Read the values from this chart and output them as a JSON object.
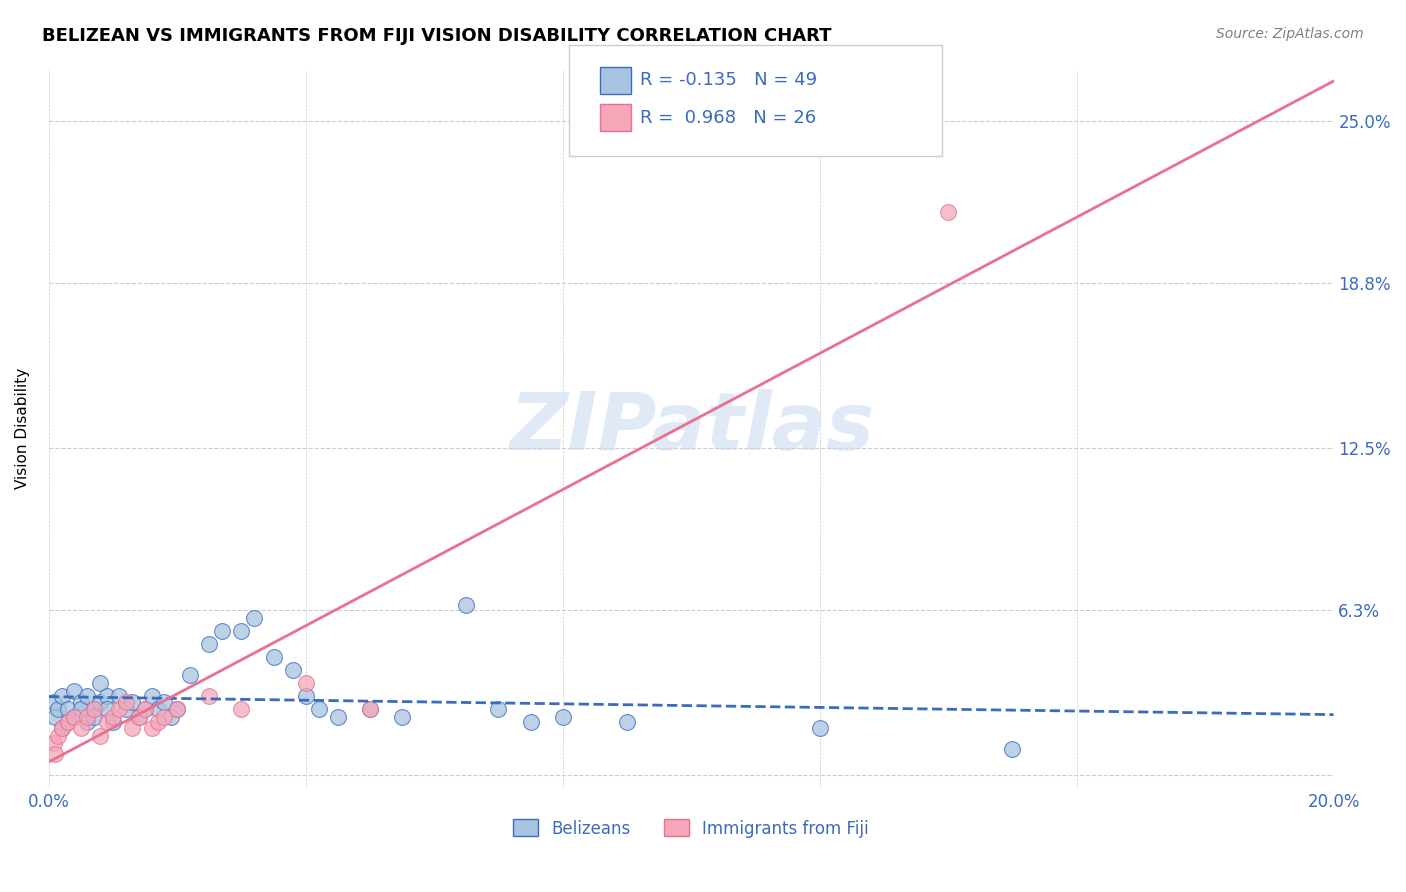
{
  "title": "BELIZEAN VS IMMIGRANTS FROM FIJI VISION DISABILITY CORRELATION CHART",
  "source": "Source: ZipAtlas.com",
  "ylabel": "Vision Disability",
  "watermark": "ZIPatlas",
  "xlim": [
    0.0,
    0.2
  ],
  "ylim": [
    -0.005,
    0.27
  ],
  "xticks": [
    0.0,
    0.04,
    0.08,
    0.12,
    0.16,
    0.2
  ],
  "xtick_labels": [
    "0.0%",
    "",
    "",
    "",
    "",
    "20.0%"
  ],
  "yticks": [
    0.0,
    0.063,
    0.125,
    0.188,
    0.25
  ],
  "ytick_labels": [
    "",
    "6.3%",
    "12.5%",
    "18.8%",
    "25.0%"
  ],
  "belizean_R": -0.135,
  "belizean_N": 49,
  "fiji_R": 0.968,
  "fiji_N": 26,
  "belizean_color": "#a8c4e0",
  "fiji_color": "#f4a7b9",
  "belizean_line_color": "#3a6bbf",
  "fiji_line_color": "#e87090",
  "legend_color": "#3a6bbf",
  "belizean_x": [
    0.0008,
    0.001,
    0.0015,
    0.002,
    0.002,
    0.003,
    0.003,
    0.004,
    0.004,
    0.005,
    0.005,
    0.006,
    0.006,
    0.007,
    0.007,
    0.008,
    0.008,
    0.009,
    0.009,
    0.01,
    0.011,
    0.012,
    0.013,
    0.014,
    0.015,
    0.016,
    0.017,
    0.018,
    0.019,
    0.02,
    0.022,
    0.025,
    0.027,
    0.03,
    0.032,
    0.035,
    0.038,
    0.04,
    0.042,
    0.045,
    0.05,
    0.055,
    0.065,
    0.07,
    0.075,
    0.08,
    0.09,
    0.12,
    0.15
  ],
  "belizean_y": [
    0.028,
    0.022,
    0.025,
    0.03,
    0.018,
    0.025,
    0.02,
    0.032,
    0.022,
    0.028,
    0.025,
    0.03,
    0.02,
    0.025,
    0.022,
    0.035,
    0.028,
    0.03,
    0.025,
    0.02,
    0.03,
    0.025,
    0.028,
    0.022,
    0.025,
    0.03,
    0.025,
    0.028,
    0.022,
    0.025,
    0.038,
    0.05,
    0.055,
    0.055,
    0.06,
    0.045,
    0.04,
    0.03,
    0.025,
    0.022,
    0.025,
    0.022,
    0.065,
    0.025,
    0.02,
    0.022,
    0.02,
    0.018,
    0.01
  ],
  "fiji_x": [
    0.0008,
    0.001,
    0.0015,
    0.002,
    0.003,
    0.004,
    0.005,
    0.006,
    0.007,
    0.008,
    0.009,
    0.01,
    0.011,
    0.012,
    0.013,
    0.014,
    0.015,
    0.016,
    0.017,
    0.018,
    0.02,
    0.025,
    0.03,
    0.04,
    0.05,
    0.14
  ],
  "fiji_y": [
    0.012,
    0.008,
    0.015,
    0.018,
    0.02,
    0.022,
    0.018,
    0.022,
    0.025,
    0.015,
    0.02,
    0.022,
    0.025,
    0.028,
    0.018,
    0.022,
    0.025,
    0.018,
    0.02,
    0.022,
    0.025,
    0.03,
    0.025,
    0.035,
    0.025,
    0.215
  ]
}
